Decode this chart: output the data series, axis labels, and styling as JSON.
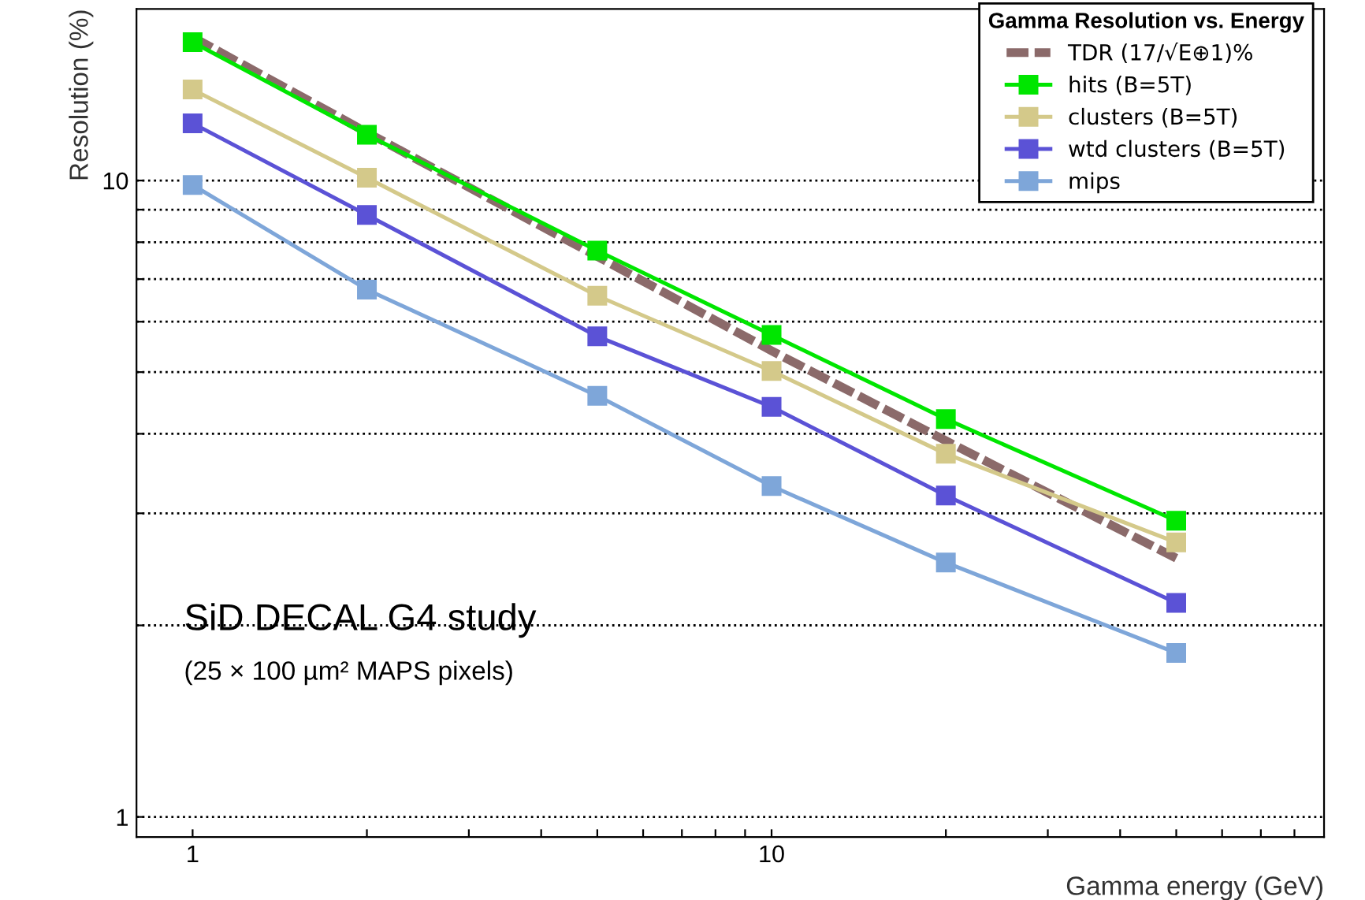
{
  "chart_data": {
    "type": "line",
    "xlabel": "Gamma energy (GeV)",
    "ylabel": "Resolution (%)",
    "legend_title": "Gamma Resolution vs. Energy",
    "log": "xy",
    "xlim": [
      0.8,
      90
    ],
    "ylim": [
      0.93,
      18.6
    ],
    "xticks": [
      1,
      {
        "value": 2,
        "label": null
      },
      {
        "value": 3,
        "label": null
      },
      {
        "value": 4,
        "label": null
      },
      {
        "value": 5,
        "label": null
      },
      {
        "value": 6,
        "label": null
      },
      {
        "value": 7,
        "label": null
      },
      {
        "value": 8,
        "label": null
      },
      {
        "value": 9,
        "label": null
      },
      10,
      {
        "value": 20,
        "label": null
      },
      {
        "value": 30,
        "label": null
      },
      {
        "value": 40,
        "label": null
      },
      {
        "value": 50,
        "label": null
      },
      {
        "value": 60,
        "label": null
      },
      {
        "value": 70,
        "label": null
      },
      {
        "value": 80,
        "label": null
      }
    ],
    "yticks": [
      1,
      {
        "value": 2,
        "label": null
      },
      {
        "value": 3,
        "label": null
      },
      {
        "value": 4,
        "label": null
      },
      {
        "value": 5,
        "label": null
      },
      {
        "value": 6,
        "label": null
      },
      {
        "value": 7,
        "label": null
      },
      {
        "value": 8,
        "label": null
      },
      {
        "value": 9,
        "label": null
      },
      10
    ],
    "grid": "y",
    "legend": "top right",
    "x": [
      1,
      2,
      5,
      10,
      20,
      50
    ],
    "series": [
      {
        "name": "TDR (17/√E⊕1)%",
        "color": "#8b6a6a",
        "values": [
          16.8,
          11.9,
          7.6,
          5.4,
          3.9,
          2.55
        ],
        "line_style": "dashed",
        "marker": "none"
      },
      {
        "name": "hits (B=5T)",
        "color": "#00e600",
        "values": [
          16.5,
          11.8,
          7.76,
          5.72,
          4.22,
          2.92
        ],
        "marker": "square"
      },
      {
        "name": "clusters (B=5T)",
        "color": "#d4c98a",
        "values": [
          13.9,
          10.1,
          6.59,
          5.02,
          3.72,
          2.7
        ],
        "marker": "square"
      },
      {
        "name": "wtd clusters (B=5T)",
        "color": "#5b52d6",
        "values": [
          12.3,
          8.83,
          5.69,
          4.41,
          3.2,
          2.17
        ],
        "marker": "square"
      },
      {
        "name": "mips",
        "color": "#7ea6d9",
        "values": [
          9.84,
          6.74,
          4.59,
          3.31,
          2.51,
          1.81
        ],
        "marker": "square"
      }
    ],
    "annotations": [
      "SiD DECAL G4 study",
      "(25 × 100 µm² MAPS pixels)"
    ]
  }
}
